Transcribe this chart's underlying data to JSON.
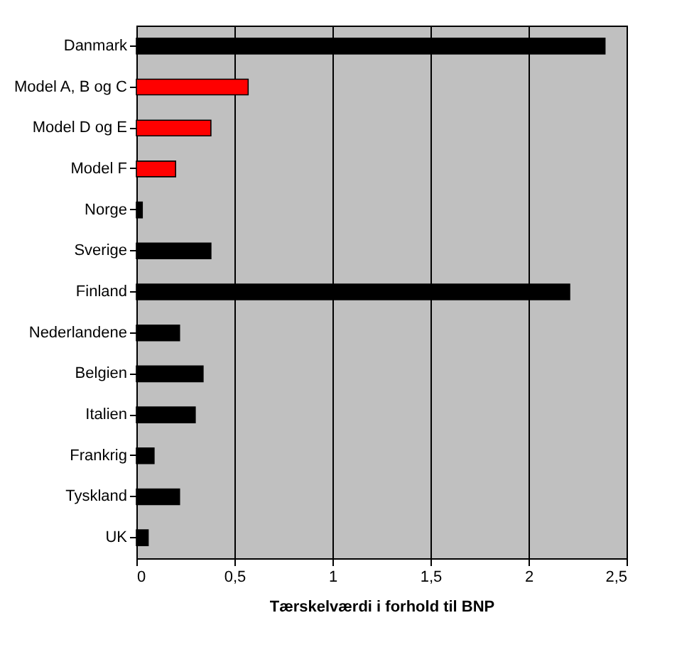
{
  "chart_data": {
    "type": "bar",
    "orientation": "horizontal",
    "xlabel": "Tærskelværdi i forhold til BNP",
    "categories": [
      "Danmark",
      "Model A, B og C",
      "Model D og E",
      "Model F",
      "Norge",
      "Sverige",
      "Finland",
      "Nederlandene",
      "Belgien",
      "Italien",
      "Frankrig",
      "Tyskland",
      "UK"
    ],
    "values": [
      2.39,
      0.57,
      0.38,
      0.2,
      0.03,
      0.38,
      2.21,
      0.22,
      0.34,
      0.3,
      0.09,
      0.22,
      0.06
    ],
    "colors": [
      "#000000",
      "#ff0000",
      "#ff0000",
      "#ff0000",
      "#000000",
      "#000000",
      "#000000",
      "#000000",
      "#000000",
      "#000000",
      "#000000",
      "#000000",
      "#000000"
    ],
    "xlim": [
      0,
      2.5
    ],
    "xticks": [
      0,
      {
        "value": 0.5,
        "label": "0,5"
      },
      1,
      {
        "value": 1.5,
        "label": "1,5"
      },
      2,
      {
        "value": 2.5,
        "label": "2,5"
      }
    ],
    "grid": "x"
  }
}
